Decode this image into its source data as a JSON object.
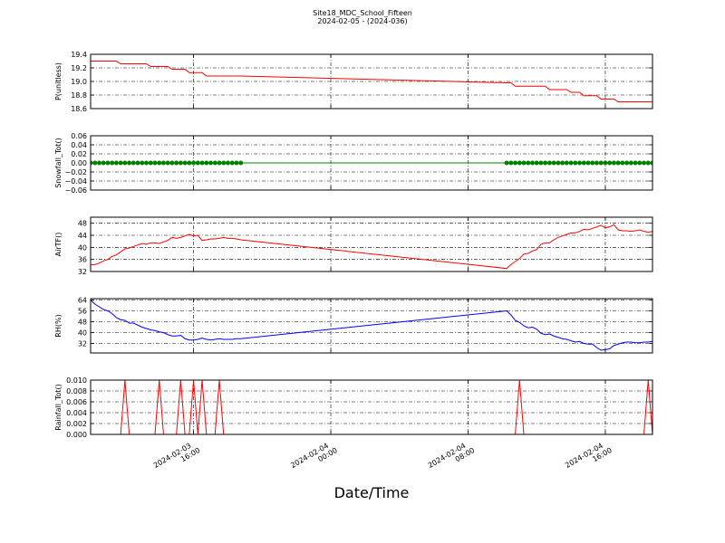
{
  "title": "Site18_MDC_School_Fifteen",
  "subtitle": "2024-02-05 - (2024-036)",
  "xlabel": "Date/Time",
  "xlim": [
    "2024-02-03 10:00",
    "2024-02-04 18:45"
  ],
  "xticks": [
    "2024-02-03 16:00",
    "2024-02-04 00:00",
    "2024-02-04 08:00",
    "2024-02-04 16:00"
  ],
  "grid": true,
  "x": [
    "2024-02-03 10:00",
    "2024-02-03 10:15",
    "2024-02-03 10:30",
    "2024-02-03 10:45",
    "2024-02-03 11:00",
    "2024-02-03 11:15",
    "2024-02-03 11:30",
    "2024-02-03 11:45",
    "2024-02-03 12:00",
    "2024-02-03 12:15",
    "2024-02-03 12:30",
    "2024-02-03 12:45",
    "2024-02-03 13:00",
    "2024-02-03 13:15",
    "2024-02-03 13:30",
    "2024-02-03 13:45",
    "2024-02-03 14:00",
    "2024-02-03 14:15",
    "2024-02-03 14:30",
    "2024-02-03 14:45",
    "2024-02-03 15:00",
    "2024-02-03 15:15",
    "2024-02-03 15:30",
    "2024-02-03 15:45",
    "2024-02-03 16:00",
    "2024-02-03 16:15",
    "2024-02-03 16:30",
    "2024-02-03 16:45",
    "2024-02-03 17:00",
    "2024-02-03 17:15",
    "2024-02-03 17:30",
    "2024-02-03 17:45",
    "2024-02-03 18:00",
    "2024-02-03 18:15",
    "2024-02-03 18:30",
    "2024-02-03 18:45",
    "2024-02-04 10:15",
    "2024-02-04 10:30",
    "2024-02-04 10:45",
    "2024-02-04 11:00",
    "2024-02-04 11:15",
    "2024-02-04 11:30",
    "2024-02-04 11:45",
    "2024-02-04 12:00",
    "2024-02-04 12:15",
    "2024-02-04 12:30",
    "2024-02-04 12:45",
    "2024-02-04 13:00",
    "2024-02-04 13:15",
    "2024-02-04 13:30",
    "2024-02-04 13:45",
    "2024-02-04 14:00",
    "2024-02-04 14:15",
    "2024-02-04 14:30",
    "2024-02-04 14:45",
    "2024-02-04 15:00",
    "2024-02-04 15:15",
    "2024-02-04 15:30",
    "2024-02-04 15:45",
    "2024-02-04 16:00",
    "2024-02-04 16:15",
    "2024-02-04 16:30",
    "2024-02-04 16:45",
    "2024-02-04 17:00",
    "2024-02-04 17:15",
    "2024-02-04 17:30",
    "2024-02-04 17:45",
    "2024-02-04 18:00",
    "2024-02-04 18:15",
    "2024-02-04 18:30",
    "2024-02-04 18:45"
  ],
  "chart_data": [
    {
      "type": "line",
      "ylabel": "P(unitless)",
      "ylim": [
        18.6,
        19.4
      ],
      "yticks": [
        18.6,
        18.8,
        {
          "value": 19,
          "label": "19.0"
        },
        19.2,
        19.4
      ],
      "series": [
        {
          "color": "#ff0000",
          "values": [
            19.3,
            19.3,
            19.3,
            19.3,
            19.3,
            19.3,
            19.3,
            19.26,
            19.26,
            19.26,
            19.26,
            19.26,
            19.26,
            19.26,
            19.22,
            19.22,
            19.22,
            19.22,
            19.22,
            19.18,
            19.18,
            19.18,
            19.18,
            19.13,
            19.13,
            19.13,
            19.13,
            19.08,
            19.08,
            19.08,
            19.08,
            19.08,
            19.08,
            19.08,
            19.08,
            19.08,
            18.98,
            18.98,
            18.93,
            18.93,
            18.93,
            18.93,
            18.93,
            18.93,
            18.93,
            18.93,
            18.88,
            18.88,
            18.88,
            18.88,
            18.88,
            18.84,
            18.84,
            18.84,
            18.79,
            18.79,
            18.79,
            18.79,
            18.74,
            18.74,
            18.74,
            18.74,
            18.7,
            18.7,
            18.7,
            18.7,
            18.7,
            18.7,
            18.7,
            18.7,
            18.7
          ]
        }
      ]
    },
    {
      "type": "line",
      "ylabel": "Snowfall_Tot()",
      "ylim": [
        -0.06,
        0.06
      ],
      "yticks": [
        0.06,
        0.04,
        0.02,
        {
          "value": 0,
          "label": "0.00"
        },
        {
          "value": -0.02,
          "label": "−0.02"
        },
        {
          "value": -0.04,
          "label": "−0.04"
        },
        {
          "value": -0.06,
          "label": "−0.06"
        }
      ],
      "series": [
        {
          "color": "#008000",
          "marker": "o",
          "values": [
            0,
            0,
            0,
            0,
            0,
            0,
            0,
            0,
            0,
            0,
            0,
            0,
            0,
            0,
            0,
            0,
            0,
            0,
            0,
            0,
            0,
            0,
            0,
            0,
            0,
            0,
            0,
            0,
            0,
            0,
            0,
            0,
            0,
            0,
            0,
            0,
            0,
            0,
            0,
            0,
            0,
            0,
            0,
            0,
            0,
            0,
            0,
            0,
            0,
            0,
            0,
            0,
            0,
            0,
            0,
            0,
            0,
            0,
            0,
            0,
            0,
            0,
            0,
            0,
            0,
            0,
            0,
            0,
            0,
            0,
            0
          ]
        }
      ]
    },
    {
      "type": "line",
      "ylabel": "AirTF()",
      "ylim": [
        32,
        50
      ],
      "yticks": [
        32,
        36,
        40,
        44,
        48
      ],
      "series": [
        {
          "color": "#ff0000",
          "values": [
            34.2,
            34.3,
            34.8,
            35.5,
            36.0,
            37.0,
            37.5,
            38.5,
            39.5,
            39.8,
            40.3,
            40.8,
            41.3,
            41.0,
            41.5,
            41.5,
            41.3,
            41.8,
            42.3,
            43.3,
            43.0,
            43.3,
            43.8,
            44.3,
            43.8,
            44.0,
            42.3,
            42.5,
            42.8,
            42.8,
            43.0,
            43.3,
            43.0,
            43.0,
            42.8,
            42.5,
            33.0,
            34.3,
            35.3,
            36.3,
            37.8,
            38.0,
            38.8,
            39.3,
            41.0,
            41.5,
            41.5,
            42.5,
            43.3,
            43.8,
            44.3,
            44.8,
            44.8,
            45.3,
            46.0,
            45.8,
            46.3,
            46.8,
            47.3,
            46.5,
            46.8,
            47.5,
            45.8,
            45.5,
            45.5,
            45.3,
            45.5,
            45.8,
            45.3,
            45.0,
            45.3
          ]
        }
      ]
    },
    {
      "type": "line",
      "ylabel": "RH(%)",
      "ylim": [
        25,
        65
      ],
      "yticks": [
        32,
        40,
        48,
        56,
        64
      ],
      "series": [
        {
          "color": "#0000ff",
          "values": [
            64,
            61,
            59,
            57,
            56,
            54,
            51,
            49.5,
            49,
            47,
            47,
            45.5,
            44,
            43,
            42,
            41.5,
            40.5,
            40,
            38.5,
            37.5,
            37.5,
            38,
            35.5,
            34.5,
            34.5,
            35,
            36,
            35,
            34.5,
            35,
            35.5,
            35,
            35,
            35,
            35.5,
            35.5,
            56,
            53,
            49,
            47.5,
            45,
            43.5,
            44,
            42.5,
            39.5,
            38.5,
            39,
            37.5,
            36.5,
            35.5,
            35,
            34,
            33,
            33.5,
            32,
            31.5,
            31.5,
            29,
            27,
            27.5,
            28,
            30.5,
            31.5,
            32.5,
            33,
            33,
            32.5,
            32.5,
            33,
            33,
            33.5
          ]
        }
      ]
    },
    {
      "type": "line",
      "ylabel": "Rainfall_Tot()",
      "ylim": [
        0,
        0.01
      ],
      "yticks": [
        {
          "value": 0,
          "label": "0.000"
        },
        {
          "value": 0.002,
          "label": "0.002"
        },
        {
          "value": 0.004,
          "label": "0.004"
        },
        {
          "value": 0.006,
          "label": "0.006"
        },
        {
          "value": 0.008,
          "label": "0.008"
        },
        {
          "value": 0.01,
          "label": "0.010"
        }
      ],
      "series": [
        {
          "color": "#ff0000",
          "values": [
            0,
            0,
            0,
            0,
            0,
            0,
            0,
            0,
            0.01,
            0,
            0,
            0,
            0,
            0,
            0,
            0,
            0.01,
            0,
            0,
            0,
            0,
            0.01,
            0,
            0,
            0.01,
            0,
            0.01,
            0,
            0,
            0,
            0.01,
            0,
            0,
            0,
            0,
            0,
            0,
            0,
            0,
            0.01,
            0,
            0,
            0,
            0,
            0,
            0,
            0,
            0,
            0,
            0,
            0,
            0,
            0,
            0,
            0,
            0,
            0,
            0,
            0,
            0,
            0,
            0,
            0,
            0,
            0,
            0,
            0,
            0,
            0,
            0.01,
            0
          ]
        }
      ]
    }
  ]
}
